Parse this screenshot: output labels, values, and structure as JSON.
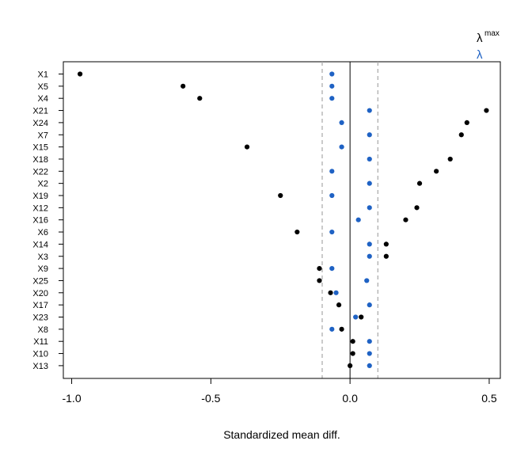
{
  "chart_data": {
    "type": "scatter",
    "title": "",
    "xlabel": "Standardized mean diff.",
    "ylabel": "",
    "xlim": [
      -1.03,
      0.54
    ],
    "xticks": [
      -1.0,
      -0.5,
      0.0,
      0.5
    ],
    "xtick_labels": [
      "-1.0",
      "-0.5",
      "0.0",
      "0.5"
    ],
    "reference_lines": {
      "solid": 0.0,
      "dashed": [
        -0.1,
        0.1
      ]
    },
    "categories": [
      "X1",
      "X5",
      "X4",
      "X21",
      "X24",
      "X7",
      "X15",
      "X18",
      "X22",
      "X2",
      "X19",
      "X12",
      "X16",
      "X6",
      "X14",
      "X3",
      "X9",
      "X25",
      "X20",
      "X17",
      "X23",
      "X8",
      "X11",
      "X10",
      "X13"
    ],
    "legend": {
      "placement": "top-right-outside",
      "entries": [
        {
          "glyph": "λ",
          "superscript": "max",
          "color": "#000000"
        },
        {
          "glyph": "λ",
          "superscript": "",
          "color": "#1f62c4"
        }
      ]
    },
    "series": [
      {
        "color": "#000000",
        "values": [
          -0.97,
          -0.6,
          -0.54,
          0.49,
          0.42,
          0.4,
          -0.37,
          0.36,
          0.31,
          0.25,
          -0.25,
          0.24,
          0.2,
          -0.19,
          0.13,
          0.13,
          -0.11,
          -0.11,
          -0.07,
          -0.04,
          0.04,
          -0.03,
          0.01,
          0.01,
          0.0
        ]
      },
      {
        "color": "#1f62c4",
        "values": [
          -0.065,
          -0.065,
          -0.065,
          0.07,
          -0.03,
          0.07,
          -0.03,
          0.07,
          -0.065,
          0.07,
          -0.065,
          0.07,
          0.03,
          -0.065,
          0.07,
          0.07,
          -0.065,
          0.06,
          -0.05,
          0.07,
          0.02,
          -0.065,
          0.07,
          0.07,
          0.07
        ]
      }
    ]
  }
}
